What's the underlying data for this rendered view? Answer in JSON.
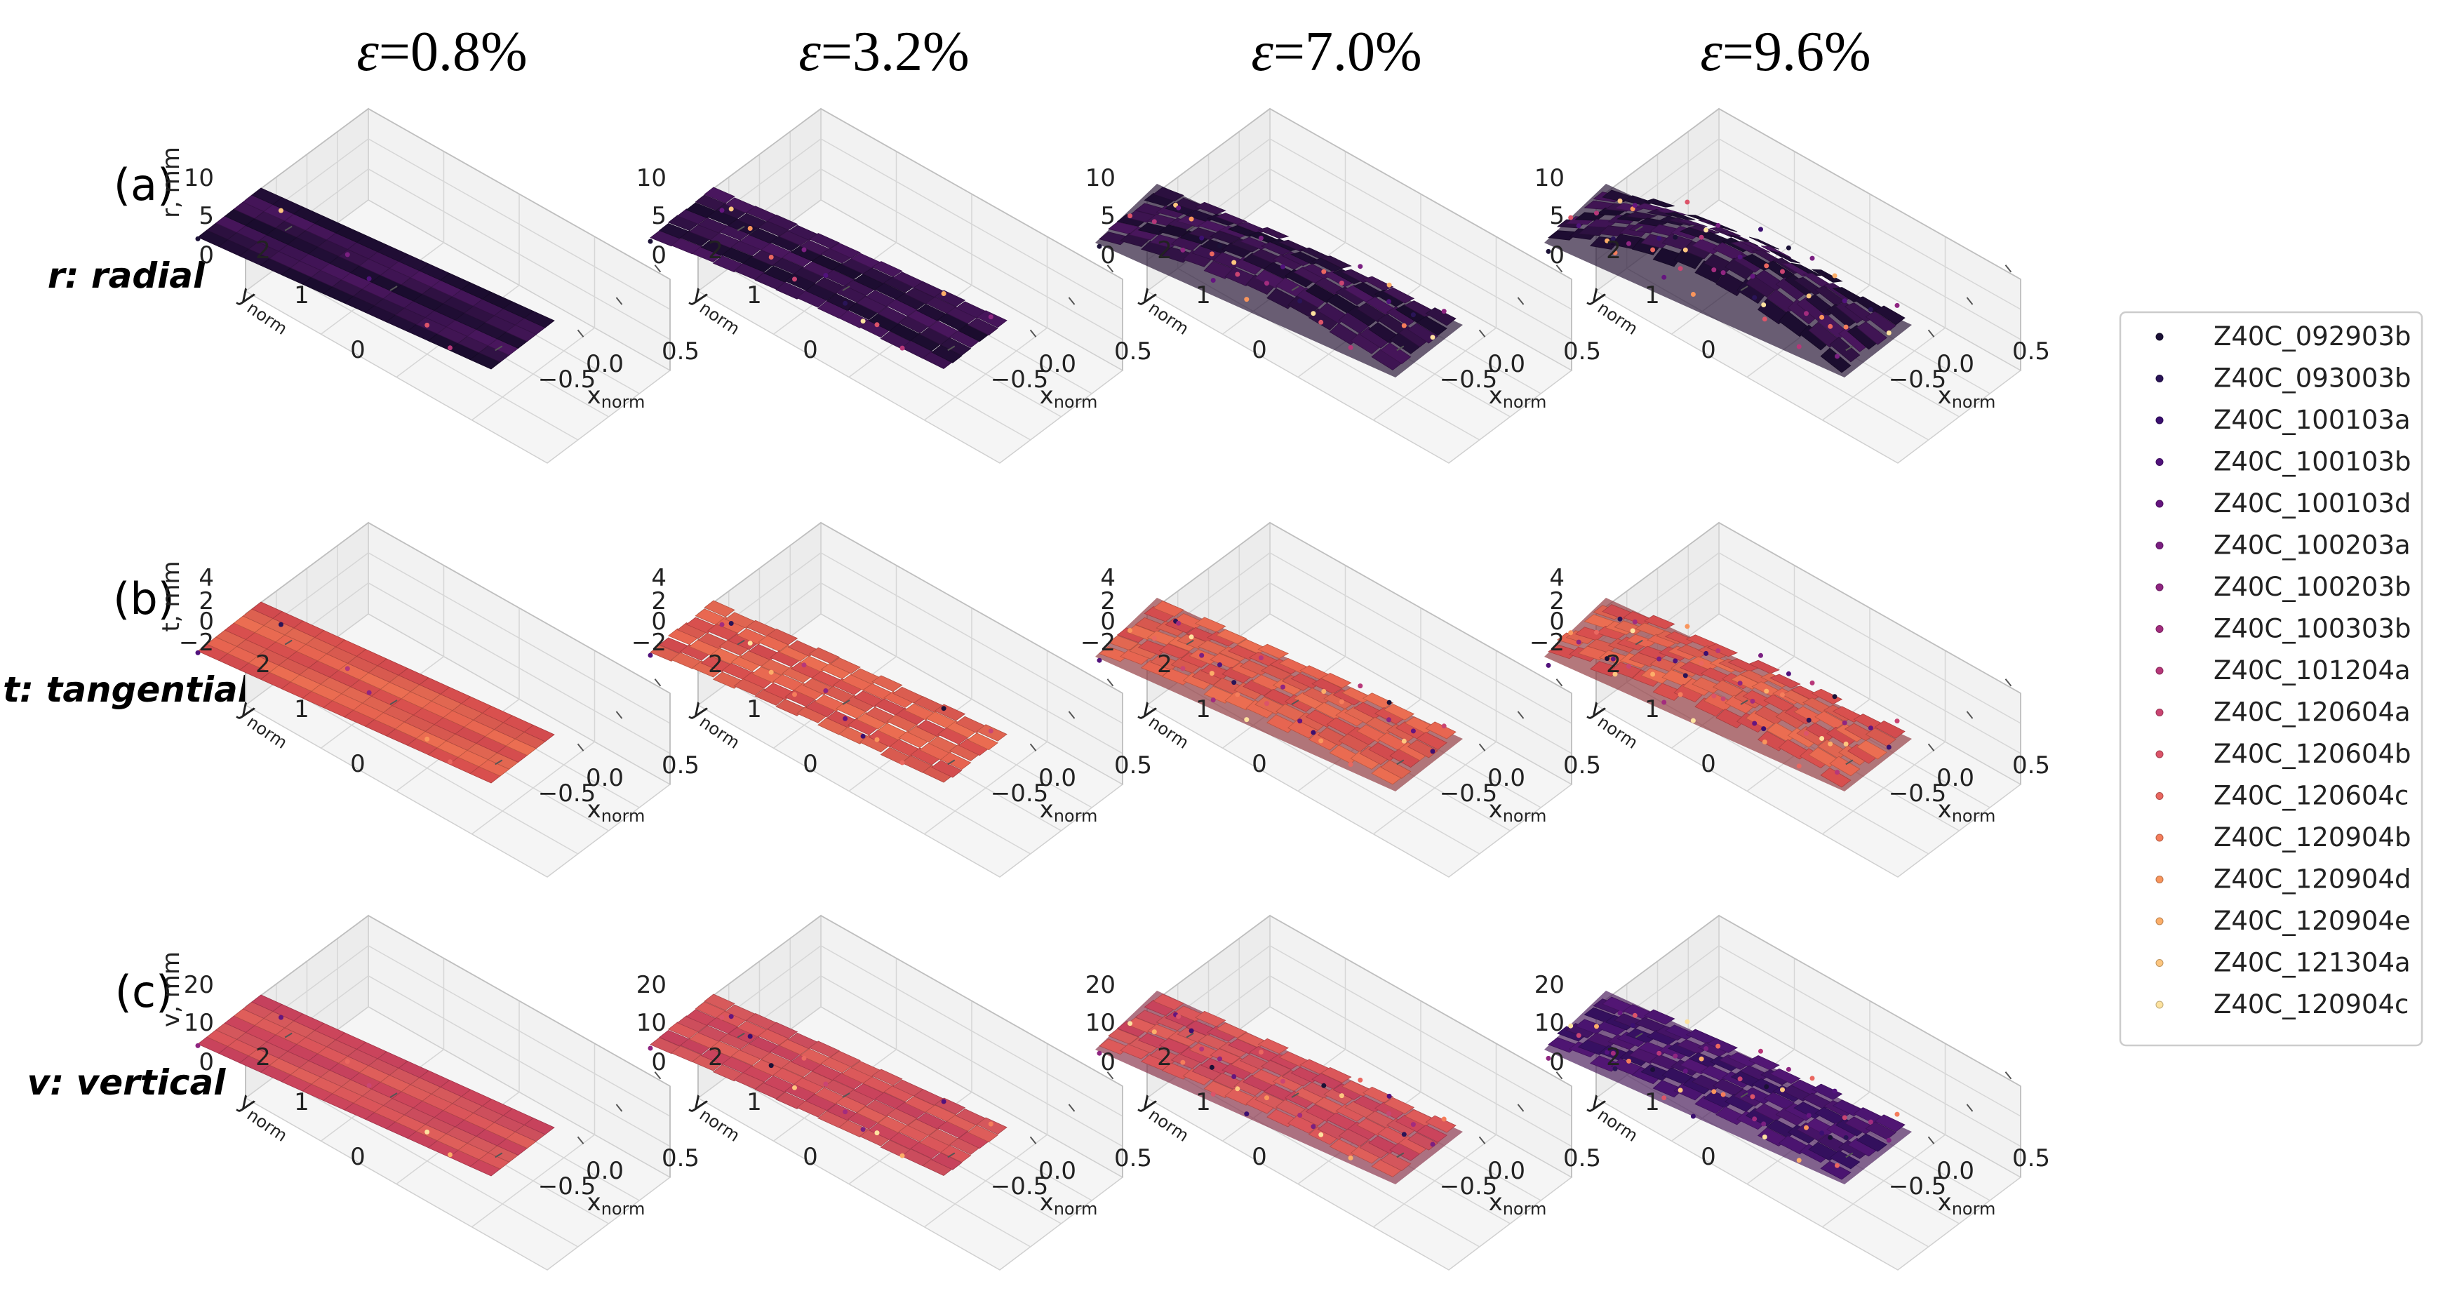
{
  "chart_data": {
    "type": "scatter",
    "columns": [
      {
        "eps_symbol": "ε",
        "eps_value": "=0.8%",
        "strain": 0.8
      },
      {
        "eps_symbol": "ε",
        "eps_value": "=3.2%",
        "strain": 3.2
      },
      {
        "eps_symbol": "ε",
        "eps_value": "=7.0%",
        "strain": 7.0
      },
      {
        "eps_symbol": "ε",
        "eps_value": "=9.6%",
        "strain": 9.6
      }
    ],
    "rows": [
      {
        "id": "(a)",
        "name": "r: radial",
        "zlabel": "r, mm",
        "zticks": [
          "10",
          "5",
          "0"
        ],
        "zlim": [
          -5,
          10
        ]
      },
      {
        "id": "(b)",
        "name": "t: tangential",
        "zlabel": "t, mm",
        "zticks": [
          "4",
          "2",
          "0",
          "−2"
        ],
        "zlim": [
          -4,
          4
        ]
      },
      {
        "id": "(c)",
        "name": "v: vertical",
        "zlabel": "v, mm",
        "zticks": [
          "20",
          "10",
          "0"
        ],
        "zlim": [
          -10,
          20
        ]
      }
    ],
    "x_axis": {
      "label_main": "x",
      "label_sub": "norm",
      "ticks": [
        "−0.5",
        "0.0",
        "0.5"
      ],
      "range": [
        -0.5,
        0.5
      ]
    },
    "y_axis": {
      "label_main": "y",
      "label_sub": "norm",
      "ticks": [
        "2",
        "1",
        "0"
      ],
      "range": [
        0,
        3
      ]
    },
    "legend": {
      "placement": "right",
      "entries": [
        {
          "name": "Z40C_092903b",
          "color": "#1b1136"
        },
        {
          "name": "Z40C_093003b",
          "color": "#2a1457"
        },
        {
          "name": "Z40C_100103a",
          "color": "#3b0f70"
        },
        {
          "name": "Z40C_100103b",
          "color": "#51127c"
        },
        {
          "name": "Z40C_100103d",
          "color": "#65157f"
        },
        {
          "name": "Z40C_100203a",
          "color": "#7a1f81"
        },
        {
          "name": "Z40C_100203b",
          "color": "#8f2581"
        },
        {
          "name": "Z40C_100303b",
          "color": "#a32c7e"
        },
        {
          "name": "Z40C_101204a",
          "color": "#b73779"
        },
        {
          "name": "Z40C_120604a",
          "color": "#ca4572"
        },
        {
          "name": "Z40C_120604b",
          "color": "#dc5469"
        },
        {
          "name": "Z40C_120604c",
          "color": "#ea6760"
        },
        {
          "name": "Z40C_120904b",
          "color": "#f57d5b"
        },
        {
          "name": "Z40C_120904d",
          "color": "#f9955c"
        },
        {
          "name": "Z40C_120904e",
          "color": "#fcae69"
        },
        {
          "name": "Z40C_121304a",
          "color": "#fdc67f"
        },
        {
          "name": "Z40C_120904c",
          "color": "#fde29f"
        }
      ]
    }
  }
}
